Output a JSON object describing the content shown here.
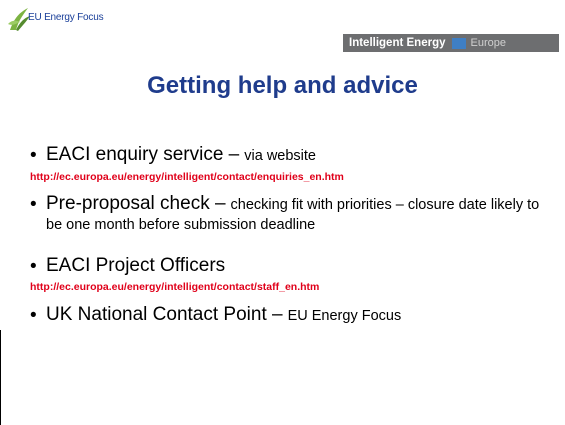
{
  "header": {
    "logo_left": "EU Energy Focus",
    "logo_right": {
      "primary": "Intelligent Energy",
      "secondary": "Europe"
    }
  },
  "title": "Getting help and advice",
  "bullets": [
    {
      "main": "EACI enquiry service –",
      "detail": "via website",
      "link": "http://ec.europa.eu/energy/intelligent/contact/enquiries_en.htm"
    },
    {
      "main": "Pre-proposal check –",
      "detail": "checking fit with priorities – closure date likely to be one month before submission deadline"
    },
    {
      "main": "EACI Project Officers",
      "link": "http://ec.europa.eu/energy/intelligent/contact/staff_en.htm"
    },
    {
      "main": "UK National Contact Point –",
      "detail": "EU Energy Focus"
    }
  ]
}
